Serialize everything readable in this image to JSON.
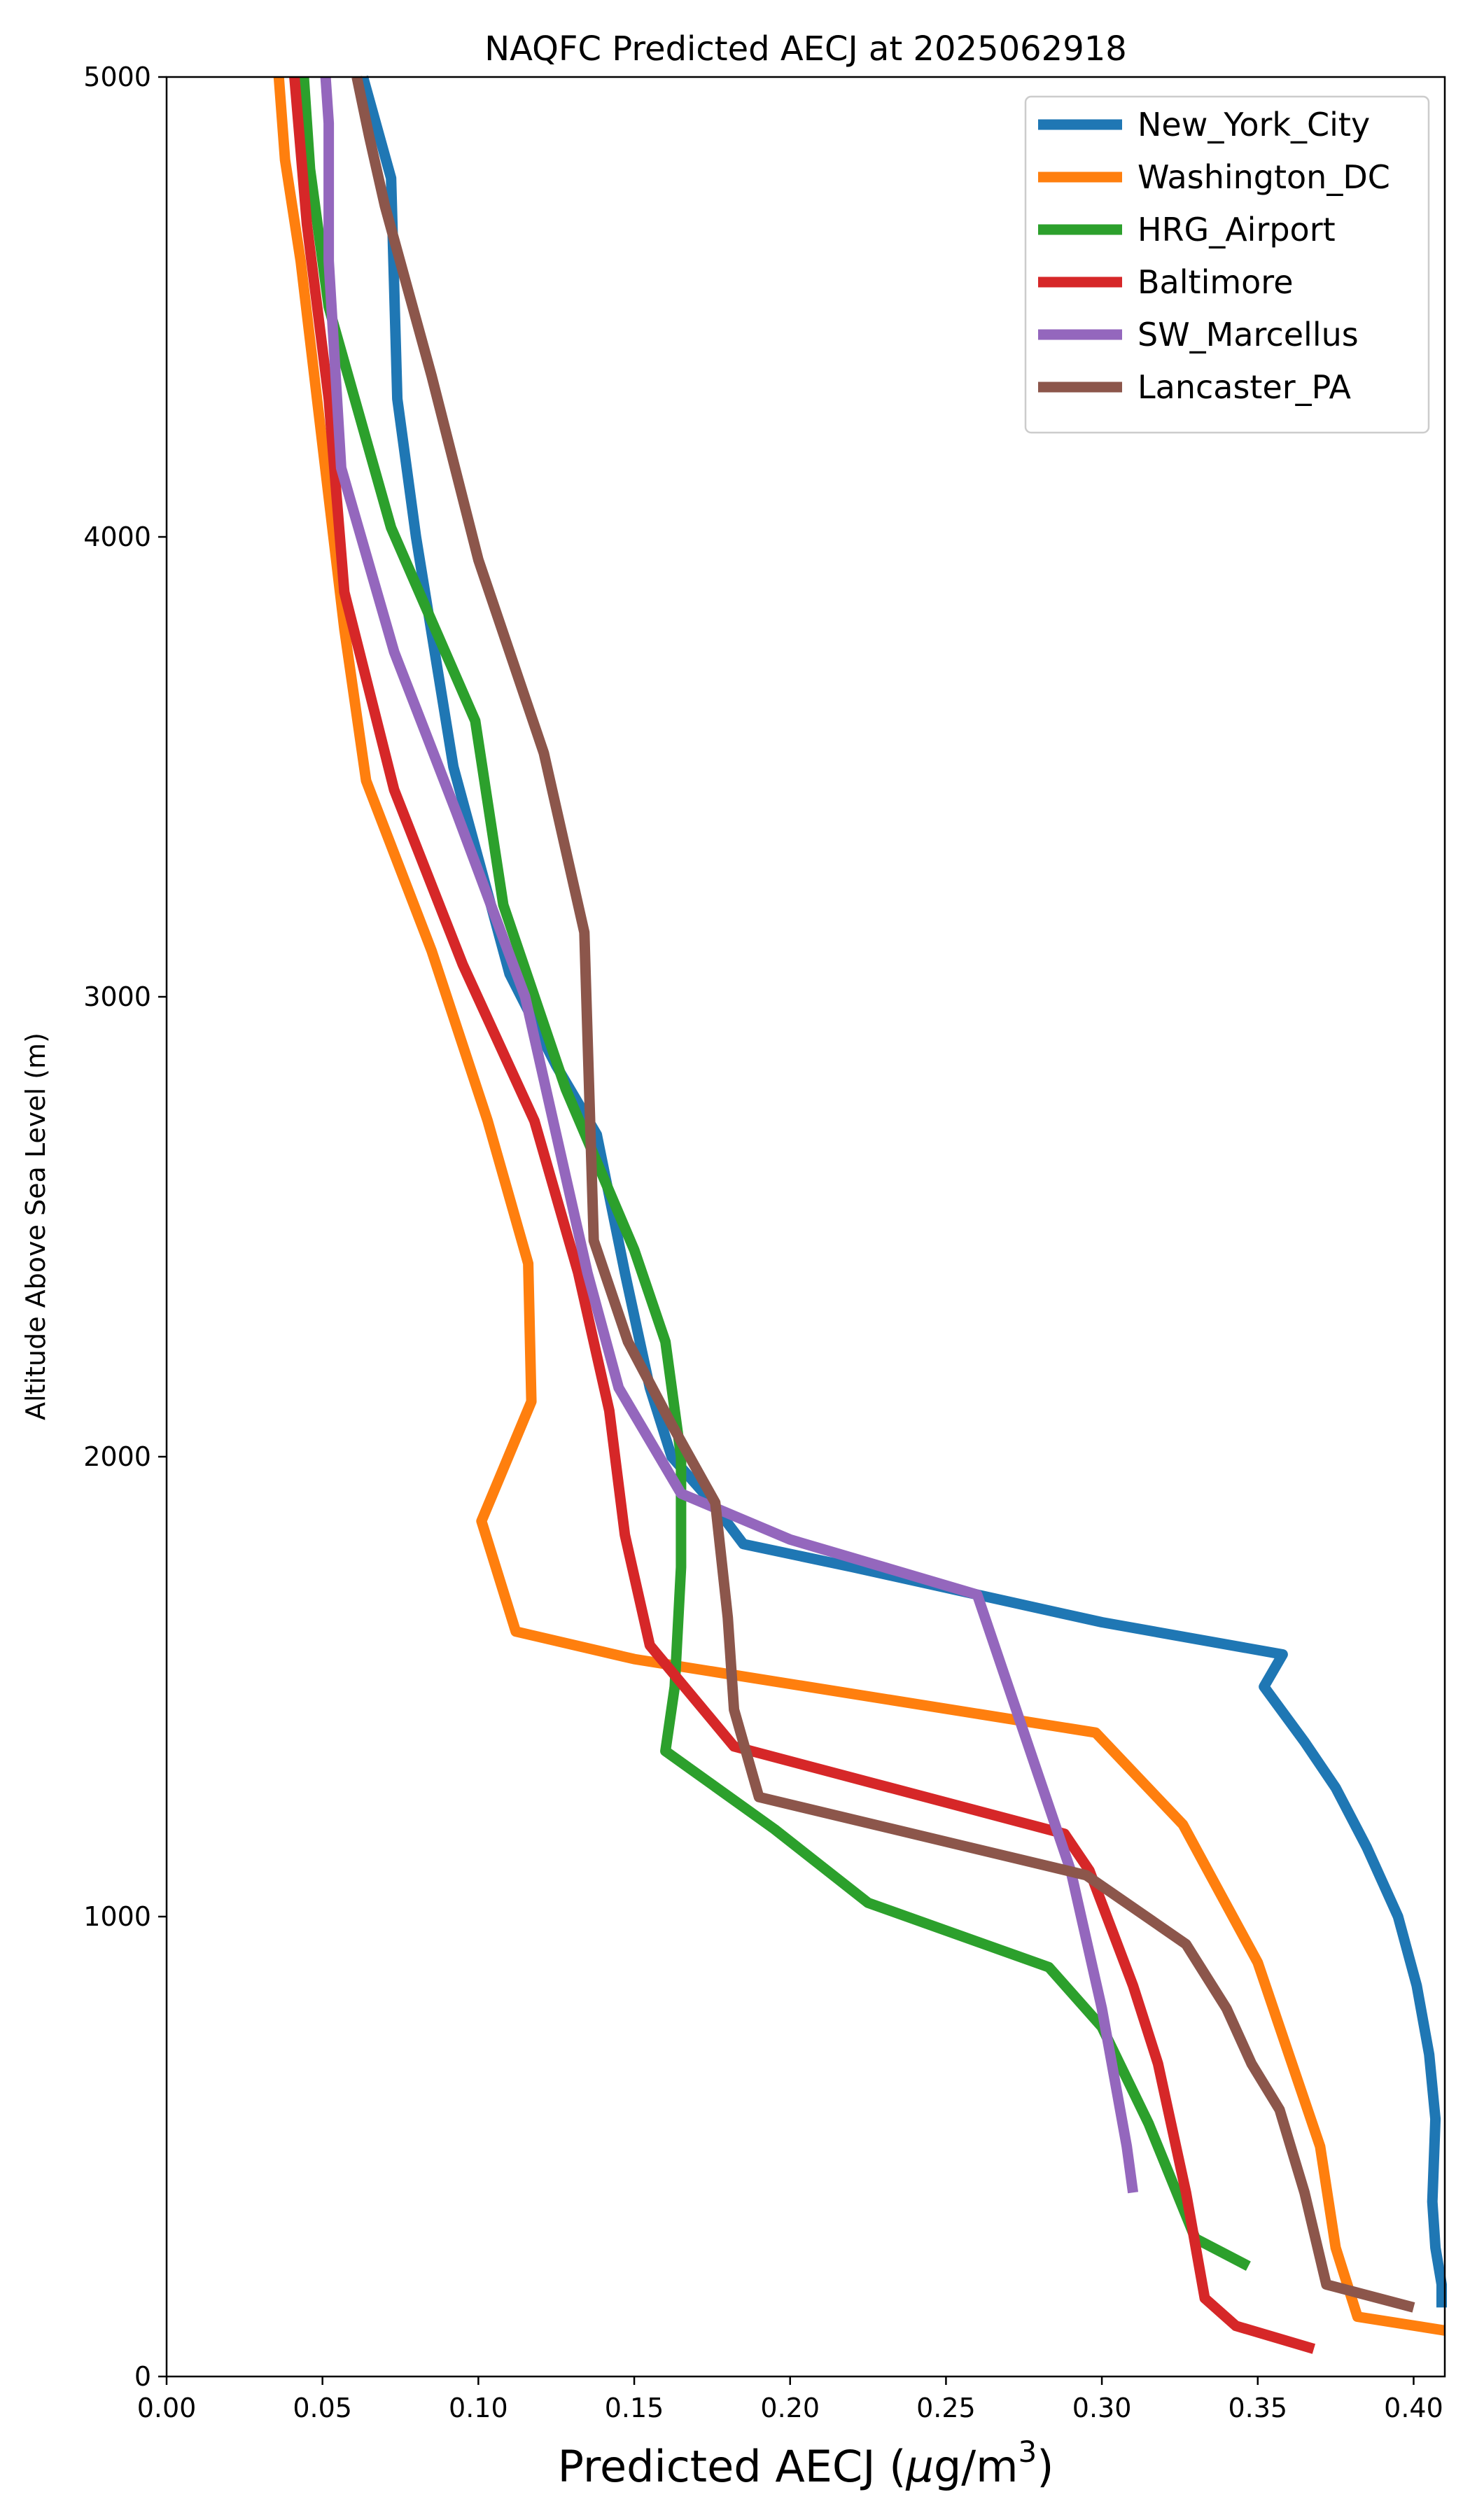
{
  "chart_data": {
    "type": "line",
    "title": "NAQFC Predicted AECJ at 2025062918",
    "xlabel_main": "Predicted AECJ (",
    "xlabel_mu": "μ",
    "xlabel_unit": "g/m",
    "xlabel_sup": "3",
    "xlabel_close": ")",
    "ylabel": "Altitude Above Sea Level (m)",
    "xlim": [
      0,
      0.41
    ],
    "ylim": [
      0,
      5000
    ],
    "xticks": [
      0.0,
      0.05,
      0.1,
      0.15,
      0.2,
      0.25,
      0.3,
      0.35,
      0.4
    ],
    "xtick_labels": [
      "0.00",
      "0.05",
      "0.10",
      "0.15",
      "0.20",
      "0.25",
      "0.30",
      "0.35",
      "0.40"
    ],
    "yticks": [
      0,
      1000,
      2000,
      3000,
      4000,
      5000
    ],
    "ytick_labels": [
      "0",
      "1000",
      "2000",
      "3000",
      "4000",
      "5000"
    ],
    "legend_position": "top-right",
    "grid": false,
    "series": [
      {
        "name": "New_York_City",
        "color": "#1f77b4",
        "points": [
          [
            0.409,
            150
          ],
          [
            0.409,
            200
          ],
          [
            0.407,
            280
          ],
          [
            0.406,
            380
          ],
          [
            0.407,
            560
          ],
          [
            0.405,
            700
          ],
          [
            0.401,
            850
          ],
          [
            0.395,
            1000
          ],
          [
            0.385,
            1150
          ],
          [
            0.375,
            1280
          ],
          [
            0.365,
            1380
          ],
          [
            0.352,
            1500
          ],
          [
            0.358,
            1570
          ],
          [
            0.3,
            1640
          ],
          [
            0.26,
            1700
          ],
          [
            0.22,
            1760
          ],
          [
            0.185,
            1810
          ],
          [
            0.175,
            1900
          ],
          [
            0.162,
            2000
          ],
          [
            0.155,
            2150
          ],
          [
            0.147,
            2400
          ],
          [
            0.138,
            2700
          ],
          [
            0.125,
            2850
          ],
          [
            0.11,
            3050
          ],
          [
            0.1,
            3300
          ],
          [
            0.092,
            3500
          ],
          [
            0.08,
            4000
          ],
          [
            0.074,
            4300
          ],
          [
            0.072,
            4780
          ],
          [
            0.063,
            5000
          ]
        ]
      },
      {
        "name": "Washington_DC",
        "color": "#ff7f0e",
        "points": [
          [
            0.41,
            100
          ],
          [
            0.382,
            130
          ],
          [
            0.375,
            280
          ],
          [
            0.37,
            500
          ],
          [
            0.36,
            700
          ],
          [
            0.35,
            900
          ],
          [
            0.338,
            1050
          ],
          [
            0.326,
            1200
          ],
          [
            0.298,
            1400
          ],
          [
            0.15,
            1560
          ],
          [
            0.112,
            1620
          ],
          [
            0.101,
            1860
          ],
          [
            0.117,
            2120
          ],
          [
            0.116,
            2420
          ],
          [
            0.103,
            2730
          ],
          [
            0.085,
            3100
          ],
          [
            0.064,
            3470
          ],
          [
            0.057,
            3800
          ],
          [
            0.05,
            4200
          ],
          [
            0.043,
            4600
          ],
          [
            0.038,
            4820
          ],
          [
            0.036,
            5000
          ]
        ]
      },
      {
        "name": "HRG_Airport",
        "color": "#2ca02c",
        "points": [
          [
            0.347,
            240
          ],
          [
            0.33,
            300
          ],
          [
            0.315,
            550
          ],
          [
            0.3,
            760
          ],
          [
            0.283,
            890
          ],
          [
            0.225,
            1030
          ],
          [
            0.195,
            1190
          ],
          [
            0.16,
            1360
          ],
          [
            0.163,
            1500
          ],
          [
            0.165,
            1760
          ],
          [
            0.165,
            2000
          ],
          [
            0.16,
            2250
          ],
          [
            0.15,
            2450
          ],
          [
            0.128,
            2800
          ],
          [
            0.108,
            3200
          ],
          [
            0.099,
            3600
          ],
          [
            0.072,
            4020
          ],
          [
            0.052,
            4500
          ],
          [
            0.046,
            4800
          ],
          [
            0.044,
            5000
          ]
        ]
      },
      {
        "name": "Baltimore",
        "color": "#d62728",
        "points": [
          [
            0.368,
            60
          ],
          [
            0.343,
            110
          ],
          [
            0.333,
            170
          ],
          [
            0.327,
            400
          ],
          [
            0.318,
            680
          ],
          [
            0.31,
            850
          ],
          [
            0.296,
            1100
          ],
          [
            0.288,
            1180
          ],
          [
            0.182,
            1370
          ],
          [
            0.155,
            1590
          ],
          [
            0.147,
            1830
          ],
          [
            0.142,
            2100
          ],
          [
            0.132,
            2400
          ],
          [
            0.118,
            2730
          ],
          [
            0.095,
            3070
          ],
          [
            0.073,
            3450
          ],
          [
            0.057,
            3880
          ],
          [
            0.052,
            4300
          ],
          [
            0.045,
            4680
          ],
          [
            0.041,
            5000
          ]
        ]
      },
      {
        "name": "SW_Marcellus",
        "color": "#9467bd",
        "points": [
          [
            0.31,
            400
          ],
          [
            0.308,
            500
          ],
          [
            0.3,
            800
          ],
          [
            0.29,
            1100
          ],
          [
            0.28,
            1300
          ],
          [
            0.27,
            1500
          ],
          [
            0.26,
            1700
          ],
          [
            0.2,
            1820
          ],
          [
            0.165,
            1920
          ],
          [
            0.145,
            2150
          ],
          [
            0.135,
            2400
          ],
          [
            0.125,
            2700
          ],
          [
            0.115,
            3000
          ],
          [
            0.093,
            3400
          ],
          [
            0.073,
            3750
          ],
          [
            0.056,
            4150
          ],
          [
            0.052,
            4600
          ],
          [
            0.052,
            4900
          ],
          [
            0.051,
            5000
          ]
        ]
      },
      {
        "name": "Lancaster_PA",
        "color": "#8c564b",
        "points": [
          [
            0.4,
            150
          ],
          [
            0.372,
            200
          ],
          [
            0.365,
            400
          ],
          [
            0.357,
            580
          ],
          [
            0.348,
            680
          ],
          [
            0.34,
            800
          ],
          [
            0.327,
            940
          ],
          [
            0.295,
            1090
          ],
          [
            0.19,
            1260
          ],
          [
            0.182,
            1450
          ],
          [
            0.18,
            1650
          ],
          [
            0.176,
            1900
          ],
          [
            0.162,
            2070
          ],
          [
            0.148,
            2250
          ],
          [
            0.137,
            2470
          ],
          [
            0.134,
            3140
          ],
          [
            0.121,
            3530
          ],
          [
            0.1,
            3950
          ],
          [
            0.085,
            4350
          ],
          [
            0.07,
            4720
          ],
          [
            0.065,
            4870
          ],
          [
            0.061,
            5000
          ]
        ]
      }
    ]
  }
}
